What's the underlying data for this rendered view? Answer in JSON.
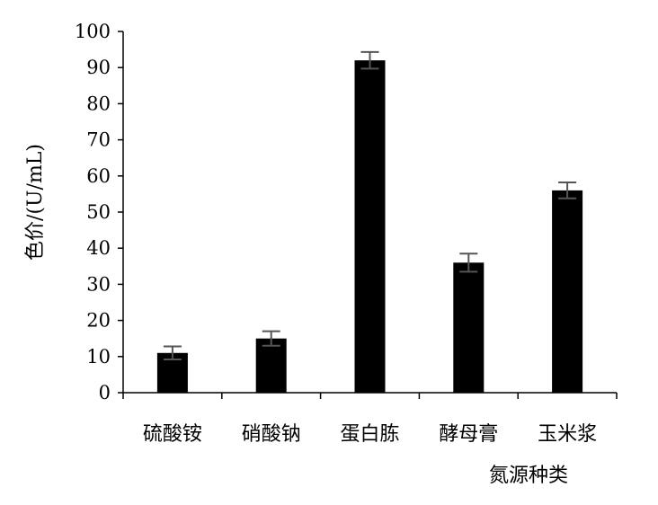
{
  "chart_data": {
    "type": "bar",
    "xlabel": "氮源种类",
    "ylabel": "色价/(U/mL)",
    "categories": [
      "硫酸铵",
      "硝酸钠",
      "蛋白胨",
      "酵母膏",
      "玉米浆"
    ],
    "values": [
      11,
      15,
      92,
      36,
      56
    ],
    "errors": [
      1.8,
      2.0,
      2.3,
      2.5,
      2.2
    ],
    "ylim": [
      0,
      100
    ],
    "yticks": [
      0,
      10,
      20,
      30,
      40,
      50,
      60,
      70,
      80,
      90,
      100
    ],
    "grid": false,
    "legend": "none",
    "bar_color": "#000000",
    "errorbar_color": "#555555"
  }
}
